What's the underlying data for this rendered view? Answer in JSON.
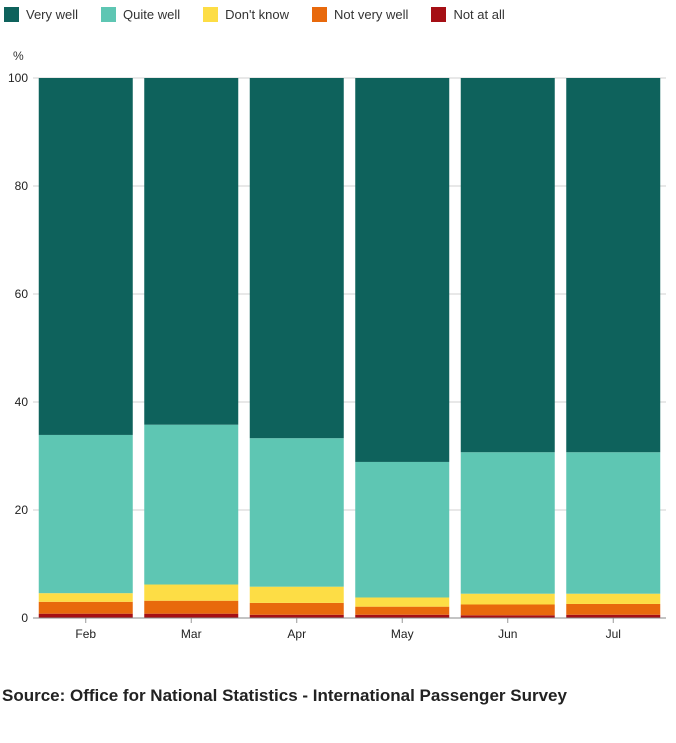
{
  "chart_data": {
    "type": "bar",
    "stacked": true,
    "ylabel": "%",
    "ylim": [
      0,
      100
    ],
    "yticks": [
      0,
      20,
      40,
      60,
      80,
      100
    ],
    "grid": true,
    "legend_position": "top-left",
    "categories": [
      "Feb",
      "Mar",
      "Apr",
      "May",
      "Jun",
      "Jul"
    ],
    "series": [
      {
        "name": "Not at all",
        "color": "#a50f15",
        "values": [
          0.8,
          0.8,
          0.6,
          0.6,
          0.5,
          0.6
        ]
      },
      {
        "name": "Not very well",
        "color": "#e8690c",
        "values": [
          2.2,
          2.4,
          2.2,
          1.5,
          2.0,
          2.0
        ]
      },
      {
        "name": "Don't know",
        "color": "#fddd45",
        "values": [
          1.6,
          3.0,
          3.0,
          1.7,
          2.0,
          1.9
        ]
      },
      {
        "name": "Quite well",
        "color": "#5ec6b3",
        "values": [
          29.3,
          29.6,
          27.5,
          25.1,
          26.2,
          26.2
        ]
      },
      {
        "name": "Very well",
        "color": "#0e625c",
        "values": [
          66.1,
          64.2,
          66.7,
          71.1,
          69.3,
          69.3
        ]
      }
    ],
    "legend_order": [
      "Very well",
      "Quite well",
      "Don't know",
      "Not very well",
      "Not at all"
    ]
  },
  "source": "Source: Office for National Statistics - International Passenger Survey"
}
